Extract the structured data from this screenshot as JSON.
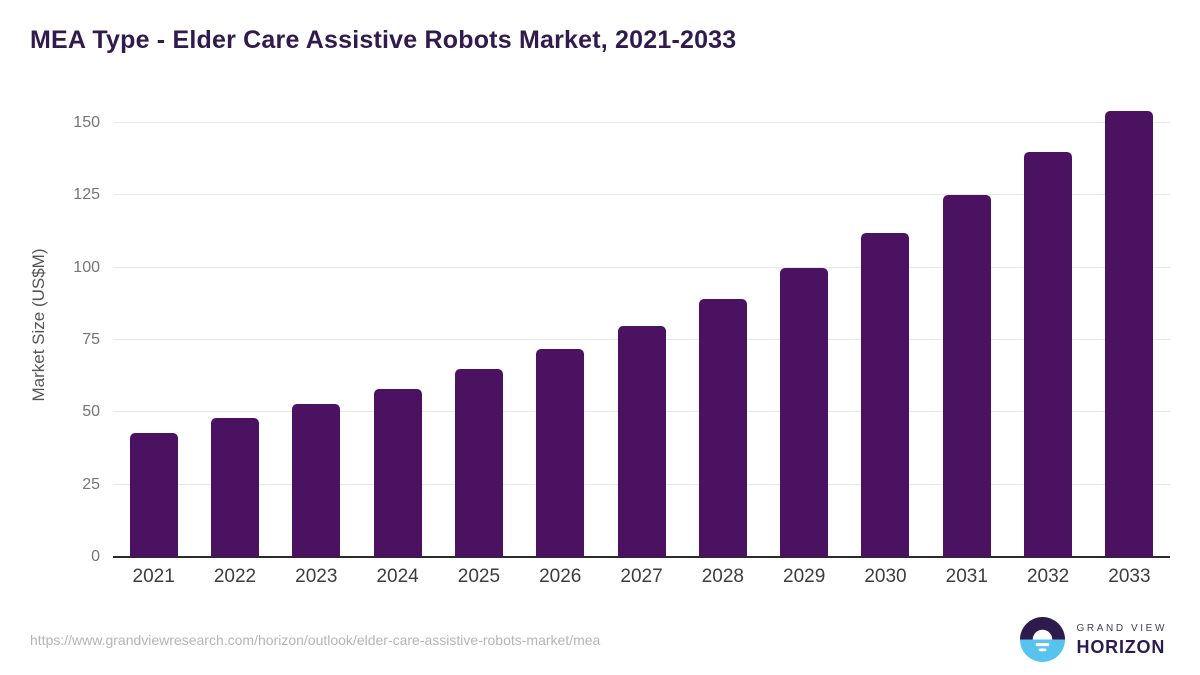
{
  "header": {
    "title": "MEA Type - Elder Care Assistive Robots Market, 2021-2033"
  },
  "chart_data": {
    "type": "bar",
    "title": "MEA Type - Elder Care Assistive Robots Market, 2021-2033",
    "categories": [
      "2021",
      "2022",
      "2023",
      "2024",
      "2025",
      "2026",
      "2027",
      "2028",
      "2029",
      "2030",
      "2031",
      "2032",
      "2033"
    ],
    "values": [
      43,
      48,
      53,
      58,
      65,
      72,
      80,
      89,
      100,
      112,
      125,
      140,
      154
    ],
    "xlabel": "",
    "ylabel": "Market Size (US$M)",
    "ylim": [
      0,
      150
    ],
    "yticks": [
      0,
      25,
      50,
      75,
      100,
      125,
      150
    ],
    "grid": "horizontal",
    "legend": "none",
    "bar_color": "#4a1261"
  },
  "footer": {
    "source_url": "https://www.grandviewresearch.com/horizon/outlook/elder-care-assistive-robots-market/mea",
    "logo": {
      "top_text": "GRAND VIEW",
      "bottom_text": "HORIZON"
    }
  },
  "colors": {
    "bar": "#4a1261",
    "grid_line": "#e8e8ea",
    "axis_line": "#2b2b2b",
    "y_tick_label": "#757575",
    "x_tick_label": "#3d3d3d",
    "title": "#301a4e",
    "source_text": "#b5b5b5",
    "logo_dark": "#2d1b4e",
    "logo_blue": "#59c3f0"
  }
}
